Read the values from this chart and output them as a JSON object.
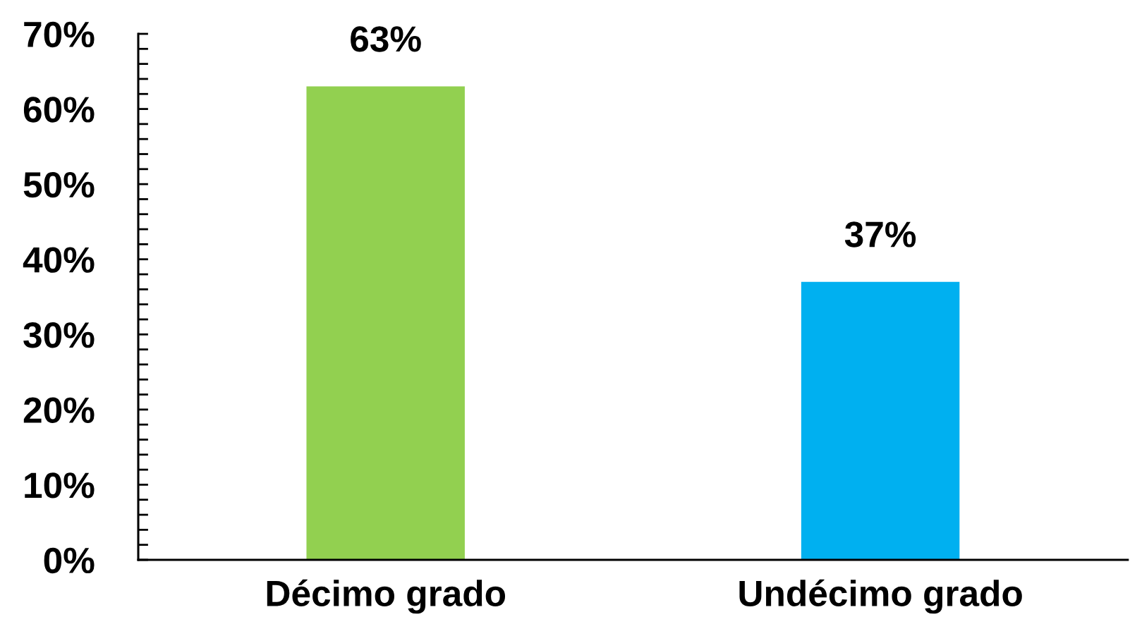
{
  "chart_data": {
    "type": "bar",
    "categories": [
      "Décimo grado",
      "Undécimo grado"
    ],
    "values": [
      63,
      37
    ],
    "colors": [
      "#92d050",
      "#00b0f0"
    ],
    "value_labels": [
      "63%",
      "37%"
    ],
    "ylim": [
      0,
      70
    ],
    "yticks": [
      {
        "value": 0,
        "label": "0%"
      },
      {
        "value": 2,
        "label": null
      },
      {
        "value": 4,
        "label": null
      },
      {
        "value": 6,
        "label": null
      },
      {
        "value": 8,
        "label": null
      },
      {
        "value": 10,
        "label": "10%"
      },
      {
        "value": 12,
        "label": null
      },
      {
        "value": 14,
        "label": null
      },
      {
        "value": 16,
        "label": null
      },
      {
        "value": 18,
        "label": null
      },
      {
        "value": 20,
        "label": "20%"
      },
      {
        "value": 22,
        "label": null
      },
      {
        "value": 24,
        "label": null
      },
      {
        "value": 26,
        "label": null
      },
      {
        "value": 28,
        "label": null
      },
      {
        "value": 30,
        "label": "30%"
      },
      {
        "value": 32,
        "label": null
      },
      {
        "value": 34,
        "label": null
      },
      {
        "value": 36,
        "label": null
      },
      {
        "value": 38,
        "label": null
      },
      {
        "value": 40,
        "label": "40%"
      },
      {
        "value": 42,
        "label": null
      },
      {
        "value": 44,
        "label": null
      },
      {
        "value": 46,
        "label": null
      },
      {
        "value": 48,
        "label": null
      },
      {
        "value": 50,
        "label": "50%"
      },
      {
        "value": 52,
        "label": null
      },
      {
        "value": 54,
        "label": null
      },
      {
        "value": 56,
        "label": null
      },
      {
        "value": 58,
        "label": null
      },
      {
        "value": 60,
        "label": "60%"
      },
      {
        "value": 62,
        "label": null
      },
      {
        "value": 64,
        "label": null
      },
      {
        "value": 66,
        "label": null
      },
      {
        "value": 68,
        "label": null
      },
      {
        "value": 70,
        "label": "70%"
      }
    ]
  }
}
